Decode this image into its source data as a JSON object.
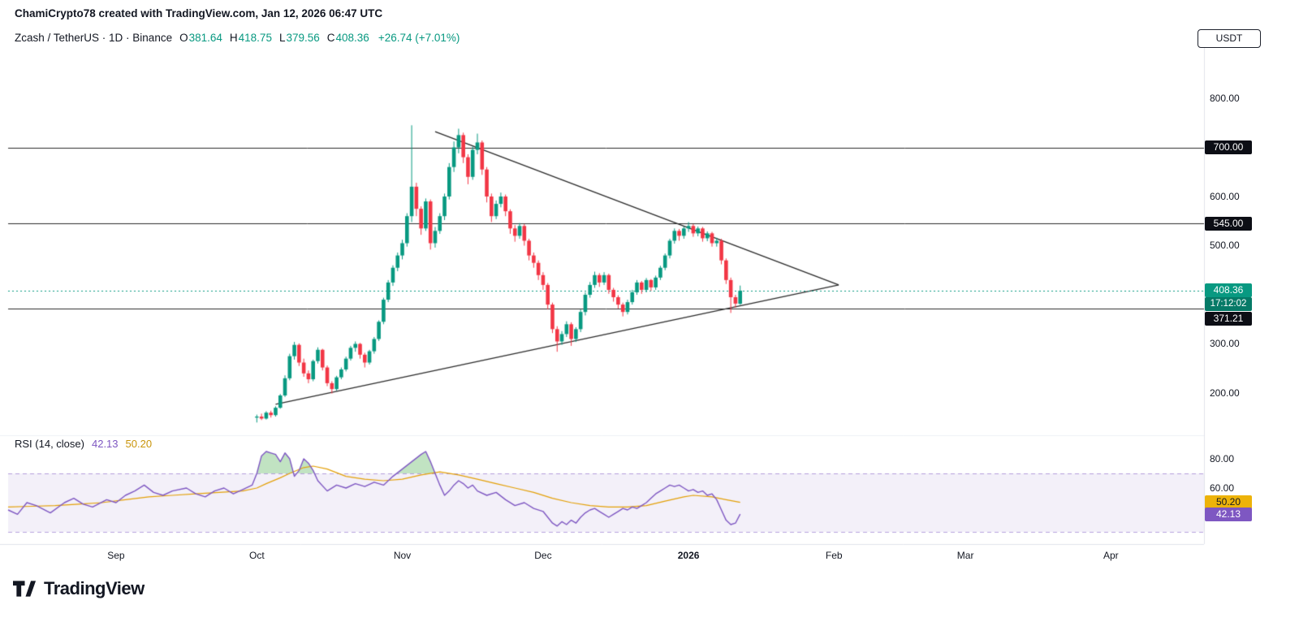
{
  "attribution": "ChamiCrypto78 created with TradingView.com, Jan 12, 2026 06:47 UTC",
  "header": {
    "title": "Zcash / TetherUS · 1D · Binance",
    "ohlc": {
      "o_label": "O",
      "o": "381.64",
      "h_label": "H",
      "h": "418.75",
      "l_label": "L",
      "l": "379.56",
      "c_label": "C",
      "c": "408.36",
      "change": "+26.74 (+7.01%)"
    }
  },
  "currency_button": "USDT",
  "rsi_header": {
    "title": "RSI (14, close)",
    "value": "42.13",
    "ma_value": "50.20"
  },
  "price_axis": {
    "labels": [
      {
        "text": "800.00",
        "price": 800,
        "style": "plain"
      },
      {
        "text": "700.00",
        "price": 700,
        "style": "black"
      },
      {
        "text": "600.00",
        "price": 600,
        "style": "plain"
      },
      {
        "text": "545.00",
        "price": 545,
        "style": "black"
      },
      {
        "text": "500.00",
        "price": 500,
        "style": "plain"
      },
      {
        "text": "408.36",
        "price": 408.36,
        "style": "green"
      },
      {
        "text": "17:12:02",
        "price": 408.36,
        "style": "countdown",
        "dy": 17
      },
      {
        "text": "371.21",
        "price": 371.21,
        "style": "black",
        "dy": 12
      },
      {
        "text": "300.00",
        "price": 300,
        "style": "plain"
      },
      {
        "text": "200.00",
        "price": 200,
        "style": "plain"
      }
    ]
  },
  "rsi_axis": {
    "labels": [
      {
        "text": "80.00",
        "value": 80,
        "style": "plain"
      },
      {
        "text": "60.00",
        "value": 60,
        "style": "plain"
      },
      {
        "text": "50.20",
        "value": 50.2,
        "style": "yellow"
      },
      {
        "text": "42.13",
        "value": 42.13,
        "style": "purple"
      }
    ]
  },
  "time_axis": {
    "months": [
      {
        "label": "Sep",
        "t": 23
      },
      {
        "label": "Oct",
        "t": 53
      },
      {
        "label": "Nov",
        "t": 84
      },
      {
        "label": "Dec",
        "t": 114
      },
      {
        "label": "2026",
        "t": 145,
        "bold": true
      },
      {
        "label": "Feb",
        "t": 176
      },
      {
        "label": "Mar",
        "t": 204
      },
      {
        "label": "Apr",
        "t": 235
      }
    ]
  },
  "logo": {
    "text": "TradingView"
  },
  "colors": {
    "up": "#089981",
    "down": "#f23645",
    "trend_line": "#2b2b2b",
    "level_line": "#2b2b2b",
    "current_price_line": "#089981",
    "rsi_line": "#7e57c2",
    "rsi_ma_line": "#e3a008",
    "band_fill": "rgba(126,87,194,0.09)",
    "band_edge": "rgba(126,87,194,0.55)",
    "overbought_fill": "rgba(76,175,80,0.35)",
    "separator": "#e0e3eb"
  },
  "chart_data": {
    "type": "candlestick",
    "title": "Zcash / TetherUS, 1D, Binance",
    "price_unit": "USDT",
    "start_date": "2025-10-01",
    "end_date": "2026-01-12",
    "candles_start_t": 53,
    "current_price": 408.36,
    "horizontal_levels": [
      700,
      545,
      371.21
    ],
    "ylim": [
      115,
      900
    ],
    "trendlines": [
      {
        "t1": 91,
        "p1": 732,
        "t2": 177,
        "p2": 420
      },
      {
        "t1": 57,
        "p1": 177,
        "t2": 177,
        "p2": 420
      }
    ],
    "ohlc": [
      [
        150,
        156,
        140,
        152
      ],
      [
        152,
        158,
        145,
        148
      ],
      [
        148,
        163,
        146,
        160
      ],
      [
        160,
        164,
        150,
        155
      ],
      [
        155,
        173,
        152,
        170
      ],
      [
        170,
        198,
        168,
        195
      ],
      [
        195,
        236,
        192,
        230
      ],
      [
        230,
        280,
        226,
        275
      ],
      [
        275,
        304,
        268,
        298
      ],
      [
        298,
        301,
        255,
        262
      ],
      [
        262,
        270,
        233,
        240
      ],
      [
        240,
        246,
        220,
        228
      ],
      [
        228,
        268,
        224,
        265
      ],
      [
        265,
        293,
        260,
        288
      ],
      [
        288,
        290,
        246,
        252
      ],
      [
        252,
        256,
        214,
        220
      ],
      [
        220,
        224,
        199,
        208
      ],
      [
        208,
        235,
        205,
        232
      ],
      [
        232,
        252,
        228,
        248
      ],
      [
        248,
        274,
        244,
        270
      ],
      [
        270,
        296,
        266,
        292
      ],
      [
        292,
        305,
        284,
        300
      ],
      [
        300,
        302,
        270,
        278
      ],
      [
        278,
        282,
        252,
        262
      ],
      [
        262,
        288,
        258,
        285
      ],
      [
        285,
        314,
        280,
        310
      ],
      [
        310,
        348,
        306,
        345
      ],
      [
        345,
        394,
        340,
        390
      ],
      [
        390,
        430,
        385,
        425
      ],
      [
        425,
        460,
        418,
        455
      ],
      [
        455,
        486,
        448,
        480
      ],
      [
        480,
        512,
        472,
        505
      ],
      [
        505,
        566,
        498,
        560
      ],
      [
        560,
        745,
        548,
        620
      ],
      [
        620,
        628,
        560,
        575
      ],
      [
        575,
        580,
        522,
        535
      ],
      [
        535,
        596,
        530,
        590
      ],
      [
        590,
        594,
        492,
        505
      ],
      [
        505,
        538,
        496,
        530
      ],
      [
        530,
        566,
        524,
        560
      ],
      [
        560,
        606,
        552,
        600
      ],
      [
        600,
        668,
        594,
        660
      ],
      [
        660,
        712,
        650,
        700
      ],
      [
        700,
        738,
        688,
        725
      ],
      [
        725,
        730,
        668,
        680
      ],
      [
        680,
        686,
        625,
        640
      ],
      [
        640,
        702,
        634,
        695
      ],
      [
        695,
        728,
        686,
        710
      ],
      [
        710,
        714,
        644,
        655
      ],
      [
        655,
        660,
        588,
        600
      ],
      [
        600,
        606,
        548,
        560
      ],
      [
        560,
        592,
        554,
        585
      ],
      [
        585,
        608,
        578,
        600
      ],
      [
        600,
        604,
        560,
        570
      ],
      [
        570,
        574,
        524,
        535
      ],
      [
        535,
        542,
        508,
        520
      ],
      [
        520,
        546,
        514,
        540
      ],
      [
        540,
        544,
        500,
        510
      ],
      [
        510,
        514,
        470,
        480
      ],
      [
        480,
        486,
        455,
        465
      ],
      [
        465,
        470,
        430,
        440
      ],
      [
        440,
        446,
        410,
        420
      ],
      [
        420,
        424,
        370,
        380
      ],
      [
        380,
        384,
        322,
        330
      ],
      [
        330,
        336,
        284,
        305
      ],
      [
        305,
        326,
        298,
        320
      ],
      [
        320,
        346,
        314,
        340
      ],
      [
        340,
        344,
        296,
        310
      ],
      [
        310,
        334,
        304,
        330
      ],
      [
        330,
        370,
        324,
        365
      ],
      [
        365,
        405,
        358,
        400
      ],
      [
        400,
        426,
        394,
        420
      ],
      [
        420,
        447,
        414,
        440
      ],
      [
        440,
        444,
        416,
        425
      ],
      [
        425,
        446,
        420,
        440
      ],
      [
        440,
        443,
        402,
        410
      ],
      [
        410,
        414,
        386,
        395
      ],
      [
        395,
        399,
        372,
        380
      ],
      [
        380,
        384,
        356,
        365
      ],
      [
        365,
        390,
        360,
        385
      ],
      [
        385,
        410,
        380,
        405
      ],
      [
        405,
        430,
        400,
        425
      ],
      [
        425,
        428,
        402,
        410
      ],
      [
        410,
        434,
        405,
        430
      ],
      [
        430,
        432,
        408,
        415
      ],
      [
        415,
        439,
        410,
        435
      ],
      [
        435,
        459,
        430,
        455
      ],
      [
        455,
        484,
        450,
        480
      ],
      [
        480,
        514,
        474,
        510
      ],
      [
        510,
        535,
        504,
        530
      ],
      [
        530,
        534,
        510,
        520
      ],
      [
        520,
        539,
        514,
        535
      ],
      [
        535,
        548,
        528,
        540
      ],
      [
        540,
        544,
        518,
        525
      ],
      [
        525,
        539,
        519,
        535
      ],
      [
        535,
        538,
        508,
        515
      ],
      [
        515,
        529,
        509,
        525
      ],
      [
        525,
        528,
        498,
        505
      ],
      [
        505,
        516,
        498,
        510
      ],
      [
        510,
        514,
        462,
        470
      ],
      [
        470,
        474,
        422,
        430
      ],
      [
        430,
        435,
        363,
        395
      ],
      [
        395,
        400,
        374,
        382
      ],
      [
        381.64,
        418.75,
        379.56,
        408.36
      ]
    ],
    "rsi": {
      "period": 14,
      "source": "close",
      "last": 42.13,
      "ma_last": 50.2,
      "bands": [
        70,
        30
      ],
      "points": [
        [
          0,
          45
        ],
        [
          2,
          42
        ],
        [
          4,
          50
        ],
        [
          6,
          48
        ],
        [
          9,
          43
        ],
        [
          12,
          50
        ],
        [
          14,
          53
        ],
        [
          16,
          49
        ],
        [
          18,
          47
        ],
        [
          21,
          52
        ],
        [
          23,
          50
        ],
        [
          25,
          55
        ],
        [
          27,
          58
        ],
        [
          29,
          62
        ],
        [
          31,
          57
        ],
        [
          33,
          55
        ],
        [
          35,
          58
        ],
        [
          38,
          60
        ],
        [
          40,
          56
        ],
        [
          42,
          54
        ],
        [
          44,
          58
        ],
        [
          46,
          60
        ],
        [
          48,
          56
        ],
        [
          50,
          59
        ],
        [
          52,
          62
        ],
        [
          53,
          70
        ],
        [
          54,
          82
        ],
        [
          55,
          85
        ],
        [
          56,
          84
        ],
        [
          57,
          83
        ],
        [
          58,
          78
        ],
        [
          59,
          84
        ],
        [
          60,
          80
        ],
        [
          61,
          68
        ],
        [
          62,
          72
        ],
        [
          63,
          80
        ],
        [
          64,
          77
        ],
        [
          65,
          72
        ],
        [
          66,
          65
        ],
        [
          68,
          58
        ],
        [
          70,
          62
        ],
        [
          72,
          60
        ],
        [
          74,
          63
        ],
        [
          76,
          61
        ],
        [
          78,
          64
        ],
        [
          80,
          62
        ],
        [
          82,
          68
        ],
        [
          84,
          73
        ],
        [
          86,
          78
        ],
        [
          88,
          83
        ],
        [
          89,
          85
        ],
        [
          90,
          78
        ],
        [
          91,
          70
        ],
        [
          92,
          62
        ],
        [
          93,
          55
        ],
        [
          94,
          58
        ],
        [
          95,
          62
        ],
        [
          96,
          65
        ],
        [
          97,
          63
        ],
        [
          98,
          60
        ],
        [
          99,
          62
        ],
        [
          100,
          58
        ],
        [
          102,
          55
        ],
        [
          104,
          57
        ],
        [
          106,
          52
        ],
        [
          108,
          48
        ],
        [
          110,
          50
        ],
        [
          112,
          46
        ],
        [
          114,
          44
        ],
        [
          115,
          40
        ],
        [
          116,
          36
        ],
        [
          117,
          34
        ],
        [
          118,
          37
        ],
        [
          119,
          35
        ],
        [
          120,
          38
        ],
        [
          121,
          36
        ],
        [
          122,
          40
        ],
        [
          123,
          43
        ],
        [
          124,
          45
        ],
        [
          125,
          46
        ],
        [
          126,
          44
        ],
        [
          127,
          42
        ],
        [
          128,
          40
        ],
        [
          129,
          42
        ],
        [
          130,
          44
        ],
        [
          131,
          46
        ],
        [
          132,
          45
        ],
        [
          133,
          47
        ],
        [
          134,
          46
        ],
        [
          135,
          48
        ],
        [
          136,
          50
        ],
        [
          137,
          53
        ],
        [
          138,
          56
        ],
        [
          139,
          58
        ],
        [
          140,
          60
        ],
        [
          141,
          62
        ],
        [
          142,
          61
        ],
        [
          143,
          62
        ],
        [
          144,
          60
        ],
        [
          145,
          58
        ],
        [
          146,
          59
        ],
        [
          147,
          57
        ],
        [
          148,
          58
        ],
        [
          149,
          55
        ],
        [
          150,
          56
        ],
        [
          151,
          52
        ],
        [
          152,
          45
        ],
        [
          153,
          38
        ],
        [
          154,
          35
        ],
        [
          155,
          36
        ],
        [
          156,
          42.13
        ]
      ],
      "ma_points": [
        [
          0,
          47
        ],
        [
          5,
          47.5
        ],
        [
          10,
          48
        ],
        [
          15,
          49
        ],
        [
          20,
          50
        ],
        [
          25,
          52
        ],
        [
          30,
          54
        ],
        [
          35,
          55
        ],
        [
          40,
          56
        ],
        [
          45,
          57
        ],
        [
          50,
          58
        ],
        [
          53,
          60
        ],
        [
          55,
          63
        ],
        [
          58,
          67
        ],
        [
          60,
          70
        ],
        [
          63,
          74
        ],
        [
          65,
          75
        ],
        [
          68,
          73
        ],
        [
          72,
          68
        ],
        [
          76,
          66
        ],
        [
          80,
          65
        ],
        [
          84,
          66
        ],
        [
          88,
          69
        ],
        [
          92,
          71
        ],
        [
          96,
          69
        ],
        [
          100,
          66
        ],
        [
          104,
          63
        ],
        [
          108,
          60
        ],
        [
          112,
          57
        ],
        [
          116,
          53
        ],
        [
          120,
          50
        ],
        [
          124,
          48
        ],
        [
          128,
          47
        ],
        [
          132,
          47
        ],
        [
          136,
          48
        ],
        [
          140,
          51
        ],
        [
          144,
          54
        ],
        [
          146,
          55
        ],
        [
          150,
          54
        ],
        [
          153,
          52
        ],
        [
          156,
          50.2
        ]
      ]
    }
  }
}
